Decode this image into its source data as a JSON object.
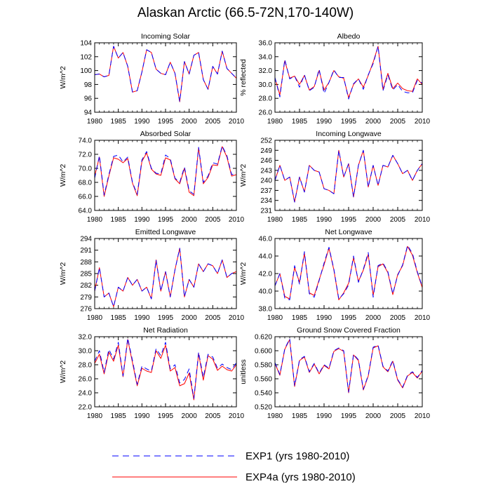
{
  "title": "Alaskan Arctic (66.5-72N,170-140W)",
  "legend": [
    {
      "label": "EXP1 (yrs 1980-2010)",
      "color": "#0000ff",
      "dash": "dashed"
    },
    {
      "label": "EXP4a (yrs 1980-2010)",
      "color": "#ff0000",
      "dash": "solid"
    }
  ],
  "chart_data": [
    {
      "type": "line",
      "title": "Incoming Solar",
      "ylabel": "W/m^2",
      "xlim": [
        1980,
        2010
      ],
      "ylim": [
        94,
        104
      ],
      "xticks": [
        1980,
        1985,
        1990,
        1995,
        2000,
        2005,
        2010
      ],
      "yticks": [
        "94",
        "96",
        "98",
        "100",
        "102",
        "104"
      ],
      "x": [
        1980,
        1981,
        1982,
        1983,
        1984,
        1985,
        1986,
        1987,
        1988,
        1989,
        1990,
        1991,
        1992,
        1993,
        1994,
        1995,
        1996,
        1997,
        1998,
        1999,
        2000,
        2001,
        2002,
        2003,
        2004,
        2005,
        2006,
        2007,
        2008,
        2009,
        2010
      ],
      "series": [
        {
          "name": "EXP1 (yrs 1980-2010)",
          "values": [
            99.4,
            99.5,
            99.1,
            99.3,
            103.5,
            101.8,
            102.6,
            100.6,
            96.9,
            97.1,
            99.8,
            103.0,
            102.6,
            100.2,
            99.6,
            99.4,
            101.2,
            99.6,
            95.5,
            101.3,
            99.5,
            102.2,
            102.6,
            98.7,
            97.3,
            100.6,
            99.5,
            102.8,
            100.3,
            99.6,
            98.9
          ]
        },
        {
          "name": "EXP4a (yrs 1980-2010)",
          "values": [
            99.4,
            99.5,
            99.1,
            99.3,
            103.5,
            101.8,
            102.6,
            100.6,
            96.9,
            97.1,
            99.8,
            103.0,
            102.6,
            100.2,
            99.6,
            99.4,
            101.2,
            99.6,
            95.5,
            101.3,
            99.5,
            102.2,
            102.6,
            98.7,
            97.3,
            100.6,
            99.5,
            102.8,
            100.3,
            99.6,
            98.9
          ]
        }
      ]
    },
    {
      "type": "line",
      "title": "Albedo",
      "ylabel": "% reflected",
      "xlim": [
        1980,
        2010
      ],
      "ylim": [
        26,
        36
      ],
      "xticks": [
        1980,
        1985,
        1990,
        1995,
        2000,
        2005,
        2010
      ],
      "yticks": [
        "26.0",
        "28.0",
        "30.0",
        "32.0",
        "34.0",
        "36.0"
      ],
      "x": [
        1980,
        1981,
        1982,
        1983,
        1984,
        1985,
        1986,
        1987,
        1988,
        1989,
        1990,
        1991,
        1992,
        1993,
        1994,
        1995,
        1996,
        1997,
        1998,
        1999,
        2000,
        2001,
        2002,
        2003,
        2004,
        2005,
        2006,
        2007,
        2008,
        2009,
        2010
      ],
      "series": [
        {
          "name": "EXP1 (yrs 1980-2010)",
          "values": [
            31.0,
            28.2,
            33.6,
            30.8,
            31.2,
            29.6,
            31.4,
            29.1,
            29.6,
            32.2,
            28.7,
            30.3,
            32.1,
            31.0,
            31.0,
            27.9,
            30.1,
            30.8,
            29.3,
            31.4,
            33.0,
            35.5,
            29.1,
            31.4,
            29.2,
            30.0,
            29.0,
            28.8,
            28.8,
            30.6,
            30.2
          ]
        },
        {
          "name": "EXP4a (yrs 1980-2010)",
          "values": [
            30.9,
            28.5,
            33.4,
            30.9,
            31.2,
            30.0,
            31.3,
            29.2,
            29.7,
            32.0,
            29.2,
            30.3,
            32.0,
            31.1,
            30.9,
            28.1,
            30.0,
            30.8,
            29.6,
            31.3,
            33.2,
            35.5,
            29.3,
            31.6,
            29.4,
            30.2,
            29.4,
            29.1,
            29.0,
            30.8,
            30.0
          ]
        }
      ]
    },
    {
      "type": "line",
      "title": "Absorbed Solar",
      "ylabel": "W/m^2",
      "xlim": [
        1980,
        2010
      ],
      "ylim": [
        64,
        74
      ],
      "xticks": [
        1980,
        1985,
        1990,
        1995,
        2000,
        2005,
        2010
      ],
      "yticks": [
        "64.0",
        "66.0",
        "68.0",
        "70.0",
        "72.0",
        "74.0"
      ],
      "x": [
        1980,
        1981,
        1982,
        1983,
        1984,
        1985,
        1986,
        1987,
        1988,
        1989,
        1990,
        1991,
        1992,
        1993,
        1994,
        1995,
        1996,
        1997,
        1998,
        1999,
        2000,
        2001,
        2002,
        2003,
        2004,
        2005,
        2006,
        2007,
        2008,
        2009,
        2010
      ],
      "series": [
        {
          "name": "EXP1 (yrs 1980-2010)",
          "values": [
            68.6,
            71.8,
            66.2,
            69.1,
            71.7,
            71.9,
            70.9,
            71.6,
            68.0,
            66.3,
            71.2,
            72.4,
            70.0,
            69.3,
            69.2,
            71.9,
            71.4,
            68.6,
            68.0,
            70.2,
            66.8,
            66.3,
            73.0,
            68.0,
            68.9,
            70.8,
            70.6,
            73.2,
            71.8,
            69.1,
            69.3
          ]
        },
        {
          "name": "EXP4a (yrs 1980-2010)",
          "values": [
            68.9,
            71.6,
            66.0,
            68.9,
            71.5,
            71.3,
            70.8,
            71.4,
            67.9,
            66.1,
            71.0,
            72.2,
            69.9,
            69.2,
            69.0,
            71.5,
            71.2,
            68.5,
            67.8,
            70.0,
            66.6,
            66.1,
            72.9,
            67.8,
            68.7,
            70.5,
            70.4,
            73.1,
            71.6,
            68.9,
            69.1
          ]
        }
      ]
    },
    {
      "type": "line",
      "title": "Incoming Longwave",
      "ylabel": "W/m^2",
      "xlim": [
        1980,
        2010
      ],
      "ylim": [
        231,
        252
      ],
      "xticks": [
        1980,
        1985,
        1990,
        1995,
        2000,
        2005,
        2010
      ],
      "yticks": [
        "231",
        "234",
        "237",
        "240",
        "243",
        "246",
        "249",
        "252"
      ],
      "x": [
        1980,
        1981,
        1982,
        1983,
        1984,
        1985,
        1986,
        1987,
        1988,
        1989,
        1990,
        1991,
        1992,
        1993,
        1994,
        1995,
        1996,
        1997,
        1998,
        1999,
        2000,
        2001,
        2002,
        2003,
        2004,
        2005,
        2006,
        2007,
        2008,
        2009,
        2010
      ],
      "series": [
        {
          "name": "EXP1 (yrs 1980-2010)",
          "values": [
            240.0,
            244.5,
            240.0,
            241.0,
            233.5,
            241.0,
            236.5,
            244.5,
            243.0,
            242.5,
            237.5,
            237.0,
            236.0,
            249.0,
            241.0,
            245.0,
            235.0,
            244.5,
            249.0,
            238.0,
            244.5,
            238.5,
            244.5,
            244.0,
            247.5,
            245.0,
            242.0,
            243.0,
            240.0,
            243.0,
            245.0
          ]
        },
        {
          "name": "EXP4a (yrs 1980-2010)",
          "values": [
            240.0,
            244.5,
            240.0,
            241.0,
            233.5,
            241.0,
            236.5,
            244.5,
            243.0,
            242.5,
            237.5,
            237.0,
            236.0,
            249.0,
            241.0,
            245.0,
            235.0,
            244.5,
            249.0,
            238.0,
            244.5,
            238.5,
            244.5,
            244.0,
            247.5,
            245.0,
            242.0,
            243.0,
            240.0,
            243.0,
            245.0
          ]
        }
      ]
    },
    {
      "type": "line",
      "title": "Emitted Longwave",
      "ylabel": "W/m^2",
      "xlim": [
        1980,
        2010
      ],
      "ylim": [
        276,
        294
      ],
      "xticks": [
        1980,
        1985,
        1990,
        1995,
        2000,
        2005,
        2010
      ],
      "yticks": [
        "276",
        "279",
        "282",
        "285",
        "288",
        "291",
        "294"
      ],
      "x": [
        1980,
        1981,
        1982,
        1983,
        1984,
        1985,
        1986,
        1987,
        1988,
        1989,
        1990,
        1991,
        1992,
        1993,
        1994,
        1995,
        1996,
        1997,
        1998,
        1999,
        2000,
        2001,
        2002,
        2003,
        2004,
        2005,
        2006,
        2007,
        2008,
        2009,
        2010
      ],
      "series": [
        {
          "name": "EXP1 (yrs 1980-2010)",
          "values": [
            280.5,
            286.5,
            279.0,
            280.0,
            276.5,
            281.5,
            280.5,
            284.0,
            282.0,
            283.5,
            280.5,
            281.5,
            278.5,
            288.5,
            280.5,
            285.5,
            279.0,
            286.0,
            291.5,
            279.0,
            283.5,
            281.5,
            287.5,
            285.5,
            287.5,
            287.0,
            285.0,
            288.5,
            284.0,
            285.0,
            285.5
          ]
        },
        {
          "name": "EXP4a (yrs 1980-2010)",
          "values": [
            280.5,
            286.5,
            279.0,
            280.0,
            276.5,
            281.5,
            280.5,
            284.0,
            282.0,
            283.5,
            280.5,
            281.5,
            278.5,
            288.5,
            280.5,
            285.5,
            279.0,
            286.0,
            291.5,
            279.0,
            283.5,
            281.5,
            287.5,
            285.5,
            287.5,
            287.0,
            285.0,
            288.5,
            284.0,
            285.0,
            285.5
          ]
        }
      ]
    },
    {
      "type": "line",
      "title": "Net Longwave",
      "ylabel": "W/m^2",
      "xlim": [
        1980,
        2010
      ],
      "ylim": [
        38,
        46
      ],
      "xticks": [
        1980,
        1985,
        1990,
        1995,
        2000,
        2005,
        2010
      ],
      "yticks": [
        "38.0",
        "40.0",
        "42.0",
        "44.0",
        "46.0"
      ],
      "x": [
        1980,
        1981,
        1982,
        1983,
        1984,
        1985,
        1986,
        1987,
        1988,
        1989,
        1990,
        1991,
        1992,
        1993,
        1994,
        1995,
        1996,
        1997,
        1998,
        1999,
        2000,
        2001,
        2002,
        2003,
        2004,
        2005,
        2006,
        2007,
        2008,
        2009,
        2010
      ],
      "series": [
        {
          "name": "EXP1 (yrs 1980-2010)",
          "values": [
            40.6,
            42.0,
            39.2,
            39.0,
            42.9,
            40.8,
            44.5,
            39.7,
            39.3,
            41.2,
            43.2,
            45.0,
            42.5,
            39.1,
            39.7,
            40.7,
            44.0,
            41.0,
            42.5,
            44.4,
            39.3,
            42.9,
            43.2,
            42.2,
            39.7,
            41.8,
            43.0,
            45.2,
            44.3,
            42.2,
            40.5
          ]
        },
        {
          "name": "EXP4a (yrs 1980-2010)",
          "values": [
            40.6,
            42.0,
            39.4,
            39.1,
            42.7,
            41.0,
            44.3,
            39.8,
            39.5,
            41.3,
            43.0,
            44.9,
            42.4,
            39.0,
            39.8,
            40.9,
            43.8,
            41.1,
            42.4,
            44.2,
            39.5,
            42.8,
            43.1,
            42.1,
            39.6,
            41.9,
            42.9,
            45.1,
            44.1,
            42.1,
            40.4
          ]
        }
      ]
    },
    {
      "type": "line",
      "title": "Net Radiation",
      "ylabel": "W/m^2",
      "xlim": [
        1980,
        2010
      ],
      "ylim": [
        22,
        32
      ],
      "xticks": [
        1980,
        1985,
        1990,
        1995,
        2000,
        2005,
        2010
      ],
      "yticks": [
        "22.0",
        "24.0",
        "26.0",
        "28.0",
        "30.0",
        "32.0"
      ],
      "x": [
        1980,
        1981,
        1982,
        1983,
        1984,
        1985,
        1986,
        1987,
        1988,
        1989,
        1990,
        1991,
        1992,
        1993,
        1994,
        1995,
        1996,
        1997,
        1998,
        1999,
        2000,
        2001,
        2002,
        2003,
        2004,
        2005,
        2006,
        2007,
        2008,
        2009,
        2010
      ],
      "series": [
        {
          "name": "EXP1 (yrs 1980-2010)",
          "values": [
            28.5,
            30.0,
            26.9,
            30.2,
            28.8,
            31.2,
            26.4,
            31.8,
            28.6,
            25.2,
            27.8,
            27.4,
            27.1,
            30.3,
            29.3,
            31.2,
            27.4,
            28.0,
            25.4,
            25.9,
            27.4,
            23.2,
            29.8,
            26.2,
            29.5,
            29.1,
            27.5,
            28.1,
            27.6,
            27.3,
            28.3
          ]
        },
        {
          "name": "EXP4a (yrs 1980-2010)",
          "values": [
            28.2,
            29.5,
            26.7,
            29.8,
            28.5,
            30.8,
            26.3,
            31.6,
            28.3,
            25.0,
            27.5,
            27.1,
            26.9,
            30.0,
            28.9,
            30.8,
            27.1,
            27.6,
            25.0,
            25.3,
            26.8,
            23.0,
            29.6,
            25.8,
            29.3,
            28.8,
            27.2,
            27.8,
            27.3,
            27.1,
            28.0
          ]
        }
      ]
    },
    {
      "type": "line",
      "title": "Ground Snow Covered Fraction",
      "ylabel": "unitless",
      "xlim": [
        1980,
        2010
      ],
      "ylim": [
        0.52,
        0.62
      ],
      "xticks": [
        1980,
        1985,
        1990,
        1995,
        2000,
        2005,
        2010
      ],
      "yticks": [
        "0.520",
        "0.540",
        "0.560",
        "0.580",
        "0.600",
        "0.620"
      ],
      "x": [
        1980,
        1981,
        1982,
        1983,
        1984,
        1985,
        1986,
        1987,
        1988,
        1989,
        1990,
        1991,
        1992,
        1993,
        1994,
        1995,
        1996,
        1997,
        1998,
        1999,
        2000,
        2001,
        2002,
        2003,
        2004,
        2005,
        2006,
        2007,
        2008,
        2009,
        2010
      ],
      "series": [
        {
          "name": "EXP1 (yrs 1980-2010)",
          "values": [
            0.583,
            0.566,
            0.603,
            0.617,
            0.55,
            0.587,
            0.592,
            0.57,
            0.582,
            0.568,
            0.58,
            0.575,
            0.6,
            0.604,
            0.6,
            0.541,
            0.595,
            0.587,
            0.545,
            0.565,
            0.605,
            0.608,
            0.578,
            0.571,
            0.586,
            0.559,
            0.548,
            0.565,
            0.57,
            0.562,
            0.572
          ]
        },
        {
          "name": "EXP4a (yrs 1980-2010)",
          "values": [
            0.582,
            0.565,
            0.602,
            0.616,
            0.549,
            0.586,
            0.591,
            0.569,
            0.581,
            0.567,
            0.579,
            0.574,
            0.599,
            0.603,
            0.599,
            0.54,
            0.594,
            0.586,
            0.544,
            0.564,
            0.604,
            0.607,
            0.577,
            0.57,
            0.585,
            0.558,
            0.547,
            0.564,
            0.569,
            0.561,
            0.571
          ]
        }
      ]
    }
  ]
}
